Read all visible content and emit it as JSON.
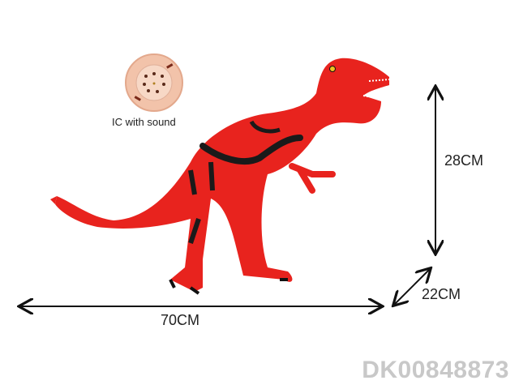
{
  "module": {
    "label": "IC with sound",
    "icon": "speaker-icon"
  },
  "dimensions": {
    "length": "70CM",
    "height": "28CM",
    "width": "22CM"
  },
  "product_code": "DK00848873",
  "colors": {
    "body": "#e8231e",
    "stripes": "#1a1a1a",
    "module": "#f2c3aa",
    "watermark": "#c8c8c8"
  }
}
